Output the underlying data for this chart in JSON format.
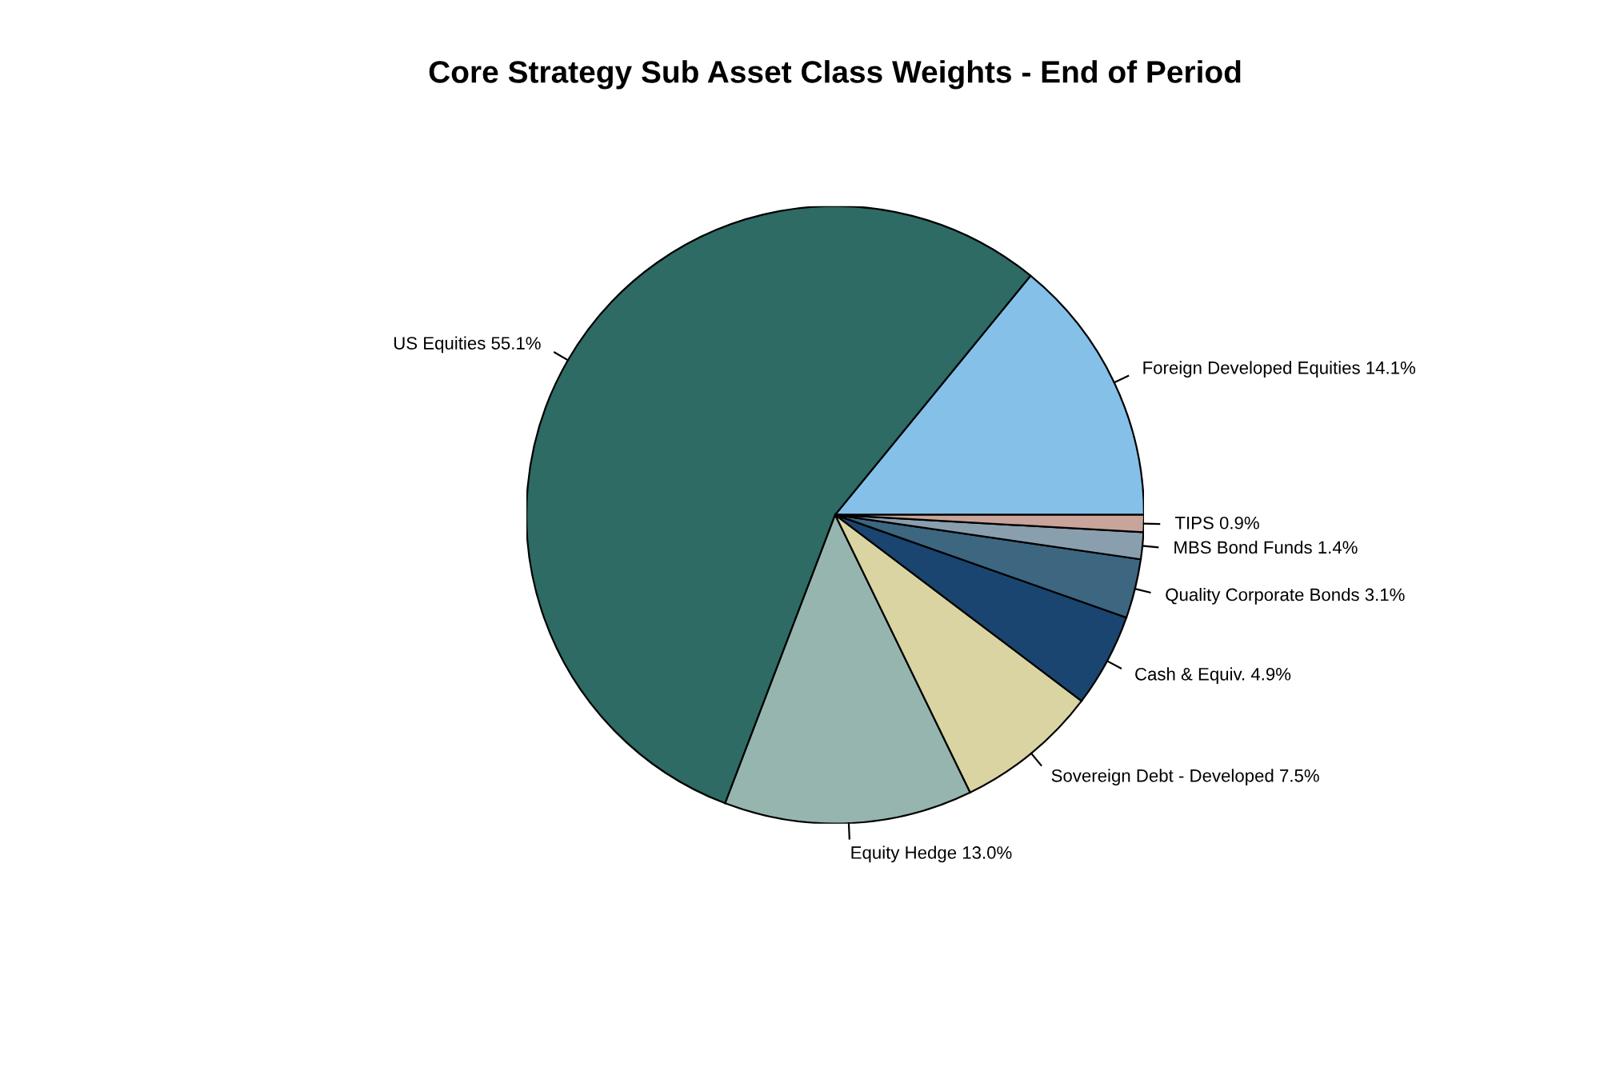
{
  "chart_data": {
    "type": "pie",
    "title": "Core Strategy Sub Asset Class Weights - End of Period",
    "categories": [
      "Foreign Developed Equities",
      "US Equities",
      "Equity Hedge",
      "Sovereign Debt - Developed",
      "Cash & Equiv.",
      "Quality Corporate Bonds",
      "MBS Bond Funds",
      "TIPS"
    ],
    "values": [
      14.1,
      55.1,
      13.0,
      7.5,
      4.9,
      3.1,
      1.4,
      0.9
    ],
    "value_labels": [
      "14.1%",
      "55.1%",
      "13.0%",
      "7.5%",
      "4.9%",
      "3.1%",
      "1.4%",
      "0.9%"
    ],
    "colors": [
      "#85c0e9",
      "#2d6b64",
      "#97b5af",
      "#d9d4a2",
      "#1a4570",
      "#3d6680",
      "#8a9fae",
      "#c9a49b"
    ]
  }
}
